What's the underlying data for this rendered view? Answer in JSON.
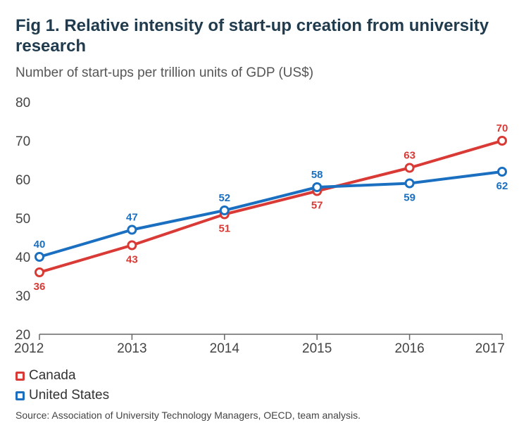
{
  "title": "Fig 1. Relative intensity of start-up creation from university research",
  "subtitle": "Number of start-ups per trillion units of GDP (US$)",
  "source": "Source: Association of University Technology Managers, OECD, team analysis.",
  "colors": {
    "canada": "#d93a35",
    "united_states": "#1a6fc0",
    "axis": "#666666",
    "tick_text": "#444444"
  },
  "chart_data": {
    "type": "line",
    "title": "Fig 1. Relative intensity of start-up creation from university research",
    "ylabel": "Number of start-ups per trillion units of GDP (US$)",
    "xlabel": "",
    "x": [
      "2012",
      "2013",
      "2014",
      "2015",
      "2016",
      "2017"
    ],
    "ylim": [
      20,
      80
    ],
    "yticks": [
      20,
      30,
      40,
      50,
      60,
      70,
      80
    ],
    "grid": false,
    "legend": "bottom-left",
    "series": [
      {
        "name": "Canada",
        "values": [
          36,
          43,
          51,
          57,
          63,
          70
        ],
        "label_position": [
          "below",
          "below",
          "below",
          "below",
          "above",
          "above"
        ]
      },
      {
        "name": "United States",
        "values": [
          40,
          47,
          52,
          58,
          59,
          62
        ],
        "label_position": [
          "above",
          "above",
          "above",
          "above",
          "below",
          "below"
        ]
      }
    ]
  },
  "legend": {
    "canada_label": "Canada",
    "us_label": "United States"
  }
}
